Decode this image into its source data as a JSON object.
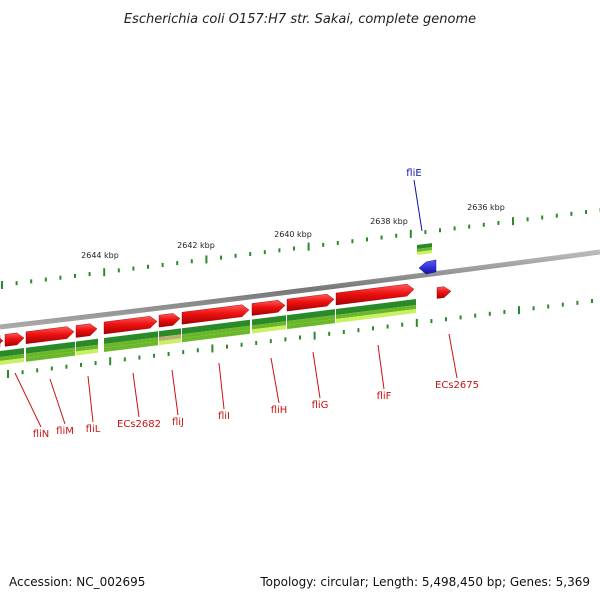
{
  "title": "Escherichia coli O157:H7 str. Sakai, complete genome",
  "footer": {
    "accession": "Accession: NC_002695",
    "summary": "Topology: circular; Length: 5,498,450 bp; Genes: 5,369"
  },
  "colors": {
    "forward_gene": "#ee1111",
    "reverse_gene": "#2222dd",
    "forward_label": "#cc1111",
    "reverse_label": "#1111aa",
    "backbone": "#888888",
    "ticks": "#2a8a2a",
    "track_dark": "#2a8a2a",
    "track_mid": "#6ab82a",
    "track_light": "#c8f060",
    "track_tan": "#b8b070"
  },
  "ruler": [
    "2644 kbp",
    "2642 kbp",
    "2640 kbp",
    "2638 kbp",
    "2636 kbp"
  ],
  "genes": [
    {
      "name": "fliN",
      "strand": "+"
    },
    {
      "name": "fliM",
      "strand": "+"
    },
    {
      "name": "fliL",
      "strand": "+"
    },
    {
      "name": "ECs2682",
      "strand": "+"
    },
    {
      "name": "fliJ",
      "strand": "+"
    },
    {
      "name": "fliI",
      "strand": "+"
    },
    {
      "name": "fliH",
      "strand": "+"
    },
    {
      "name": "fliG",
      "strand": "+"
    },
    {
      "name": "fliF",
      "strand": "+"
    },
    {
      "name": "ECs2675",
      "strand": "+"
    },
    {
      "name": "fliE",
      "strand": "-"
    }
  ]
}
